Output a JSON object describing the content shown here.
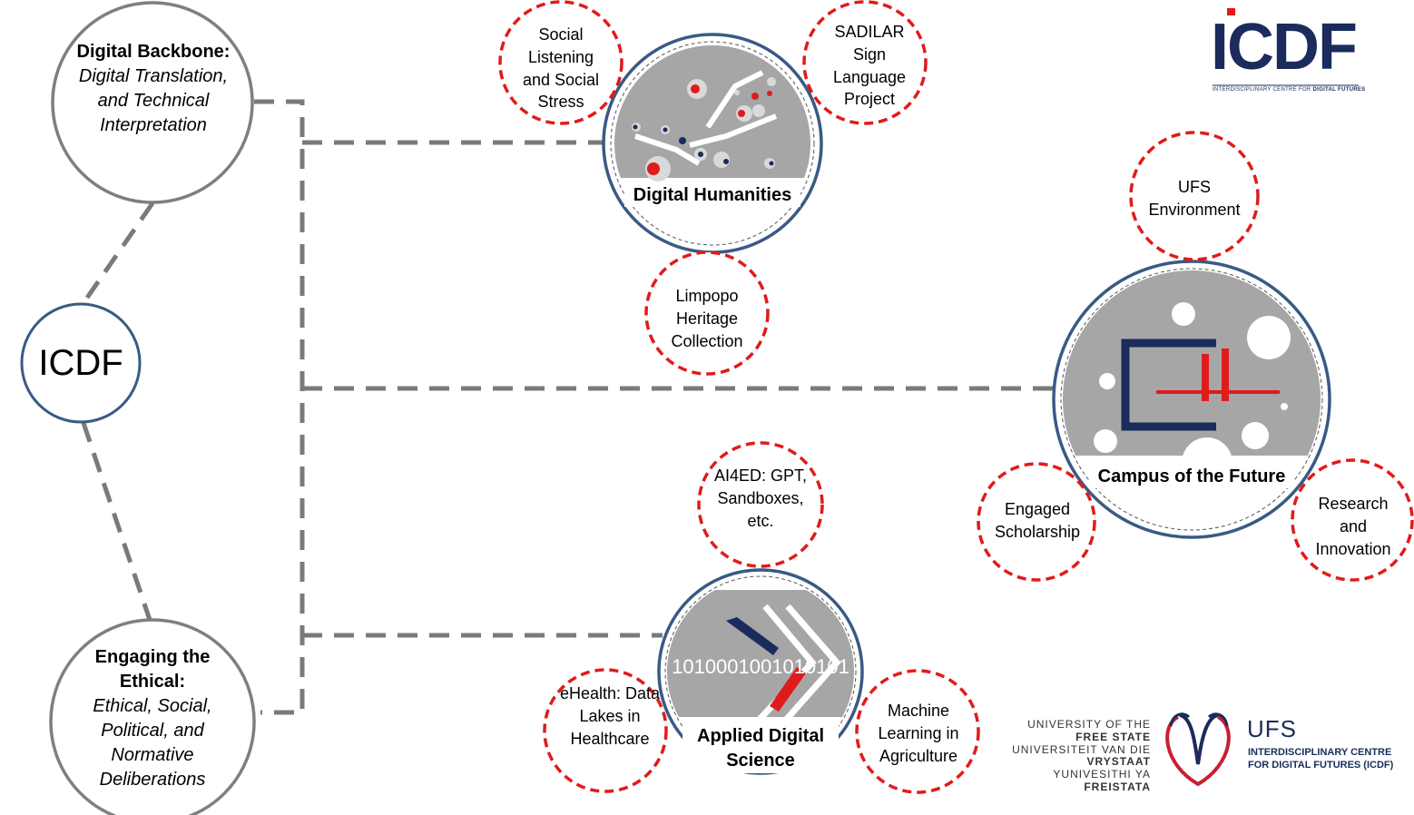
{
  "center": {
    "label": "ICDF"
  },
  "pillars": [
    {
      "title": "Digital Backbone:",
      "subtitle": "Digital Translation, and Technical Interpretation"
    },
    {
      "title": "Engaging the Ethical:",
      "subtitle": "Ethical, Social, Political, and Normative Deliberations"
    }
  ],
  "hubs": {
    "digital_humanities": {
      "title": "Digital Humanities"
    },
    "campus_future": {
      "title": "Campus of the Future"
    },
    "applied_science": {
      "title": "Applied Digital Science",
      "binary": "1010001001010101"
    }
  },
  "projects": {
    "social_listening": "Social Listening and Social Stress",
    "sadilar": "SADILAR Sign Language Project",
    "limpopo": "Limpopo Heritage Collection",
    "ufs_env": "UFS Environment",
    "engaged": "Engaged Scholarship",
    "research": "Research and Innovation",
    "ai4ed": "AI4ED: GPT, Sandboxes, etc.",
    "ehealth": "eHealth: Data Lakes in Healthcare",
    "ml_agri": "Machine Learning in Agriculture"
  },
  "logos": {
    "icdf": {
      "word": "ICDF",
      "sub_plain": "INTERDISCIPLINARY CENTRE FOR ",
      "sub_bold": "DIGITAL FUTURES"
    },
    "ufs": {
      "lines": [
        "UNIVERSITY OF THE",
        "FREE STATE",
        "UNIVERSITEIT VAN DIE",
        "VRYSTAAT",
        "YUNIVESITHI YA",
        "FREISTATA"
      ],
      "word": "UFS",
      "sub": [
        "INTERDISCIPLINARY CENTRE",
        "FOR DIGITAL FUTURES (ICDF)"
      ]
    }
  },
  "colors": {
    "navy": "#3a5a85",
    "gray": "#7f7f7f",
    "red": "#e01b1b",
    "hub_fill": "#a6a6a6",
    "dash": "#7a7a7a"
  }
}
